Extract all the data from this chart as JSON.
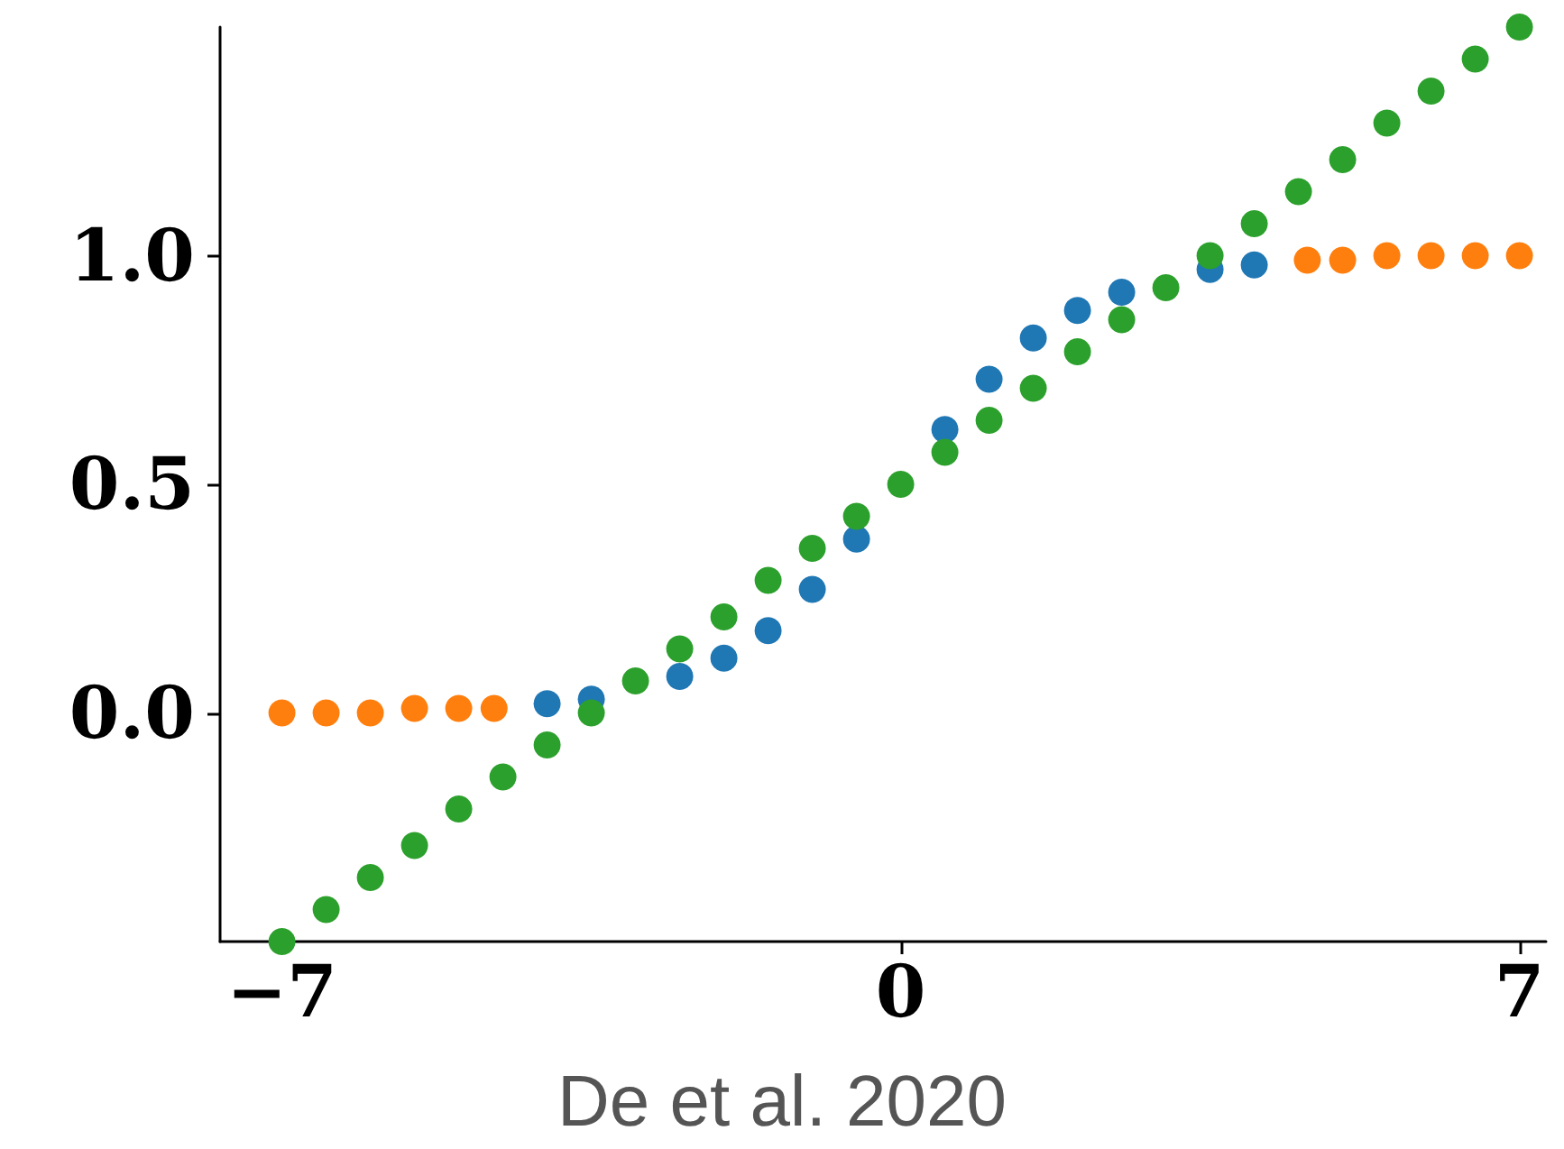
{
  "chart_data": {
    "type": "scatter",
    "marker": "circle",
    "grid": false,
    "xlim": [
      -7.7,
      7.3
    ],
    "ylim": [
      -0.5,
      1.5
    ],
    "xticks": [
      {
        "value": -7,
        "label": "−7"
      },
      {
        "value": 0,
        "label": "0"
      },
      {
        "value": 7,
        "label": "7"
      }
    ],
    "yticks": [
      {
        "value": 0,
        "label": "0.0"
      },
      {
        "value": 0.5,
        "label": "0.5"
      },
      {
        "value": 1,
        "label": "1.0"
      }
    ],
    "annotations": [
      "De et al. 2020"
    ],
    "series": [
      {
        "color": "#1f77b4",
        "x": [
          -4,
          -3.5,
          -2.5,
          -2,
          -1.5,
          -1,
          -0.5,
          0.5,
          1,
          1.5,
          2,
          2.5,
          3.5,
          4
        ],
        "values": [
          0.02,
          0.03,
          0.08,
          0.12,
          0.18,
          0.27,
          0.38,
          0.62,
          0.73,
          0.82,
          0.88,
          0.92,
          0.97,
          0.98
        ]
      },
      {
        "color": "#ff7f0e",
        "x": [
          -7,
          -6.5,
          -6,
          -5.5,
          -5,
          -4.6,
          4.6,
          5,
          5.5,
          6,
          6.5,
          7
        ],
        "values": [
          0,
          0,
          0,
          0.01,
          0.01,
          0.01,
          0.99,
          0.99,
          1,
          1,
          1,
          1
        ]
      },
      {
        "color": "#2ca02c",
        "x": [
          -7,
          -6.5,
          -6,
          -5.5,
          -5,
          -4.5,
          -4,
          -3.5,
          -3,
          -2.5,
          -2,
          -1.5,
          -1,
          -0.5,
          0,
          0.5,
          1,
          1.5,
          2,
          2.5,
          3,
          3.5,
          4,
          4.5,
          5,
          5.5,
          6,
          6.5,
          7
        ],
        "values": [
          -0.5,
          -0.43,
          -0.36,
          -0.29,
          -0.21,
          -0.14,
          -0.07,
          0,
          0.07,
          0.14,
          0.21,
          0.29,
          0.36,
          0.43,
          0.5,
          0.57,
          0.64,
          0.71,
          0.79,
          0.86,
          0.93,
          1,
          1.07,
          1.14,
          1.21,
          1.29,
          1.36,
          1.43,
          1.5
        ]
      }
    ]
  }
}
